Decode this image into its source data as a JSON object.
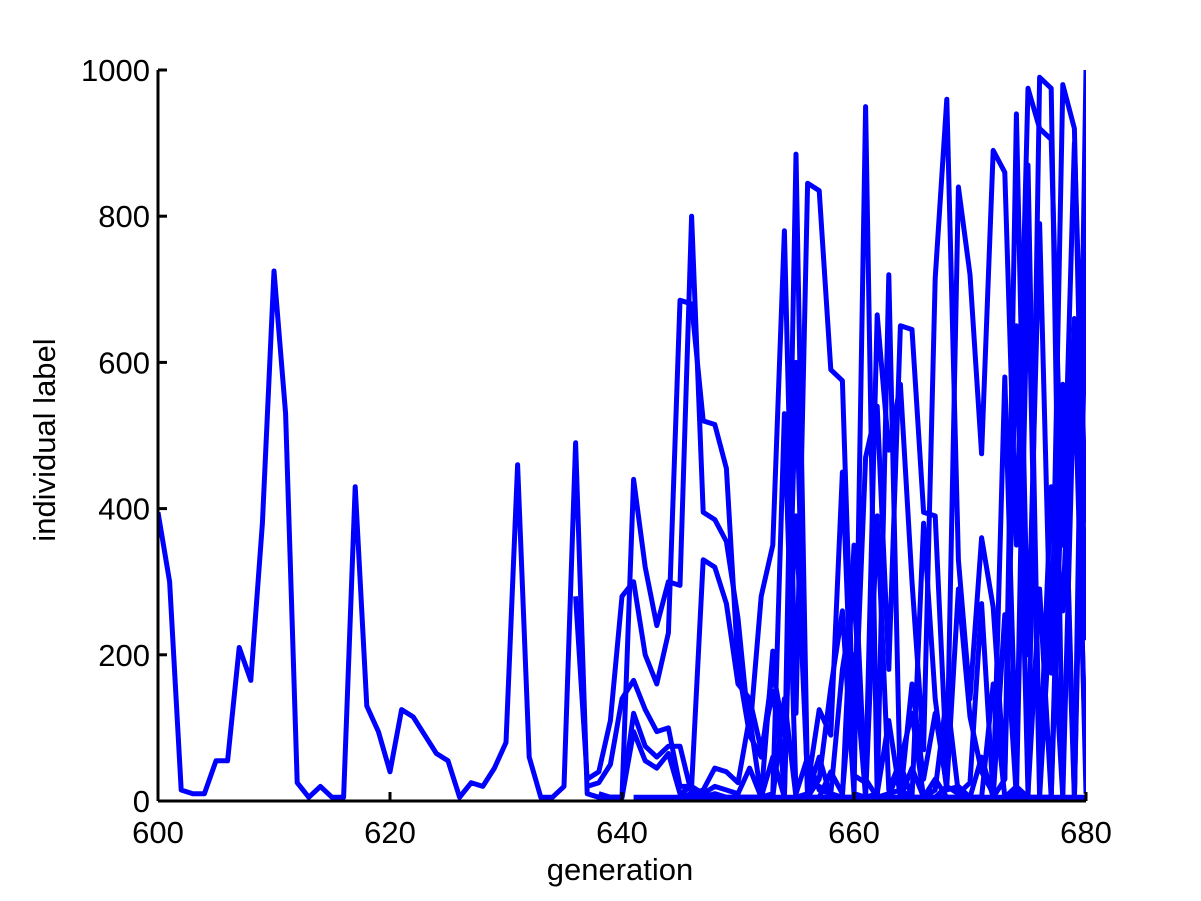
{
  "chart_data": {
    "type": "line",
    "title": "",
    "xlabel": "generation",
    "ylabel": "individual label",
    "xlim": [
      600,
      680
    ],
    "ylim": [
      0,
      1000
    ],
    "xticks": [
      600,
      620,
      640,
      660,
      680
    ],
    "yticks": [
      0,
      200,
      400,
      600,
      800,
      1000
    ],
    "grid": false,
    "legend": "none",
    "line_color": "#0000ff",
    "series": [
      {
        "x": [
          600,
          601,
          602,
          603,
          604,
          605,
          606,
          607,
          608,
          609,
          610,
          611,
          612,
          613,
          614,
          615,
          616,
          617,
          618,
          619,
          620,
          621,
          622,
          623,
          624,
          625,
          626,
          627,
          628,
          629,
          630,
          631,
          632,
          633,
          634,
          635,
          636,
          637,
          638,
          639,
          640,
          641,
          642,
          643,
          644,
          645,
          646,
          647,
          648,
          649,
          650,
          651,
          652,
          653,
          654,
          655,
          656,
          657,
          658,
          659,
          660,
          661,
          662,
          663,
          664,
          665,
          666,
          667,
          668,
          669,
          670,
          671,
          672,
          673,
          674,
          675,
          676,
          677,
          678,
          679,
          680
        ],
        "y": [
          395,
          300,
          15,
          10,
          10,
          55,
          55,
          210,
          165,
          380,
          725,
          530,
          25,
          5,
          20,
          5,
          5,
          430,
          130,
          95,
          40,
          125,
          115,
          90,
          65,
          55,
          5,
          25,
          20,
          45,
          80,
          460,
          60,
          5,
          5,
          20,
          490,
          10,
          5,
          5,
          5,
          440,
          320,
          240,
          300,
          295,
          800,
          395,
          385,
          355,
          250,
          90,
          60,
          180,
          90,
          390,
          25,
          20,
          10,
          5,
          5,
          950,
          5,
          10,
          15,
          5,
          380,
          140,
          15,
          20,
          5,
          5,
          0,
          5,
          10,
          0,
          990,
          975,
          5,
          0,
          1000
        ]
      },
      {
        "x": [
          636,
          637,
          638,
          639,
          640,
          641,
          642,
          643,
          644,
          645,
          646,
          647,
          648,
          649,
          650,
          651,
          652,
          653,
          654,
          655,
          656,
          657,
          658,
          659,
          660,
          661,
          662,
          663,
          664,
          665,
          666,
          667,
          668,
          669,
          670,
          671,
          672,
          673,
          674,
          675,
          676,
          677,
          678,
          679,
          680
        ],
        "y": [
          280,
          30,
          40,
          110,
          280,
          300,
          200,
          160,
          230,
          685,
          680,
          520,
          515,
          455,
          185,
          90,
          280,
          350,
          780,
          120,
          845,
          835,
          590,
          575,
          75,
          470,
          540,
          180,
          650,
          645,
          395,
          390,
          45,
          840,
          720,
          475,
          890,
          860,
          350,
          975,
          920,
          905,
          350,
          900,
          380
        ]
      },
      {
        "x": [
          637,
          638,
          639,
          640,
          641,
          642,
          643,
          644,
          645,
          646,
          647,
          648,
          649,
          650,
          651,
          652,
          653,
          654,
          655,
          656,
          657,
          658,
          659,
          660,
          661,
          662,
          663,
          664,
          665,
          666,
          667,
          668,
          669,
          670,
          671,
          672,
          673,
          674,
          675,
          676,
          677,
          678,
          679,
          680
        ],
        "y": [
          20,
          25,
          50,
          140,
          165,
          125,
          95,
          100,
          20,
          20,
          330,
          320,
          270,
          160,
          140,
          70,
          150,
          35,
          885,
          20,
          125,
          90,
          450,
          35,
          25,
          665,
          480,
          570,
          300,
          70,
          715,
          960,
          330,
          140,
          360,
          265,
          30,
          940,
          200,
          790,
          175,
          980,
          920,
          220
        ]
      },
      {
        "x": [
          638,
          639,
          640,
          641,
          642,
          643,
          644,
          645,
          646,
          647,
          648,
          649,
          650,
          651,
          652,
          653,
          654,
          655,
          656,
          657,
          658,
          659,
          660,
          661,
          662,
          663,
          664,
          665,
          666,
          667,
          668,
          669,
          670,
          671,
          672,
          673,
          674,
          675,
          676,
          677,
          678,
          679,
          680
        ],
        "y": [
          10,
          5,
          5,
          120,
          75,
          60,
          75,
          75,
          10,
          15,
          45,
          40,
          25,
          115,
          5,
          10,
          530,
          10,
          60,
          15,
          10,
          180,
          280,
          30,
          5,
          720,
          5,
          160,
          30,
          120,
          20,
          290,
          115,
          40,
          10,
          580,
          35,
          870,
          40,
          430,
          260,
          660,
          10
        ]
      },
      {
        "x": [
          638,
          639,
          640,
          641,
          642,
          643,
          644,
          645,
          646,
          647,
          648,
          649,
          650,
          651,
          652,
          653,
          654,
          655,
          656,
          657,
          658,
          659,
          660,
          661,
          662,
          663,
          664,
          665,
          666,
          667,
          668,
          669,
          670,
          671,
          672,
          673,
          674,
          675,
          676,
          677,
          678,
          679,
          680
        ],
        "y": [
          5,
          5,
          5,
          95,
          55,
          45,
          65,
          10,
          20,
          10,
          20,
          15,
          10,
          45,
          5,
          205,
          10,
          600,
          5,
          30,
          155,
          260,
          10,
          5,
          390,
          15,
          55,
          120,
          5,
          15,
          145,
          10,
          25,
          270,
          5,
          30,
          650,
          10,
          290,
          5,
          570,
          5,
          810
        ]
      },
      {
        "x": [
          641,
          642,
          643,
          644,
          645,
          646,
          647,
          648,
          649,
          650,
          651,
          652,
          653,
          654,
          655,
          656,
          657,
          658,
          659,
          660,
          661,
          662,
          663,
          664,
          665,
          666,
          667,
          668,
          669,
          670,
          671,
          672,
          673,
          674,
          675,
          676,
          677,
          678,
          679,
          680
        ],
        "y": [
          5,
          5,
          5,
          5,
          5,
          10,
          5,
          10,
          5,
          5,
          5,
          5,
          60,
          5,
          580,
          5,
          5,
          40,
          10,
          200,
          5,
          10,
          110,
          5,
          45,
          5,
          5,
          20,
          10,
          5,
          60,
          5,
          255,
          5,
          750,
          5,
          280,
          5,
          600,
          40
        ]
      },
      {
        "x": [
          645,
          646,
          647,
          648,
          649,
          650,
          651,
          652,
          653,
          654,
          655,
          656,
          657,
          658,
          659,
          660,
          661,
          662,
          663,
          664,
          665,
          666,
          667,
          668,
          669,
          670,
          671,
          672,
          673,
          674,
          675,
          676,
          677,
          678,
          679,
          680
        ],
        "y": [
          5,
          5,
          5,
          5,
          5,
          5,
          5,
          5,
          5,
          140,
          5,
          10,
          60,
          5,
          5,
          350,
          5,
          5,
          5,
          50,
          5,
          5,
          30,
          5,
          5,
          5,
          5,
          160,
          5,
          20,
          5,
          5,
          5,
          480,
          5,
          710
        ]
      },
      {
        "x": [
          650,
          651,
          652,
          653,
          654,
          655,
          656,
          657,
          658,
          659,
          660,
          661,
          662,
          663,
          664,
          665,
          666,
          667,
          668,
          669,
          670,
          671,
          672,
          673,
          674,
          675,
          676,
          677,
          678,
          679,
          680
        ],
        "y": [
          5,
          5,
          5,
          5,
          5,
          5,
          5,
          5,
          5,
          5,
          5,
          5,
          5,
          5,
          5,
          5,
          5,
          5,
          5,
          5,
          5,
          5,
          5,
          5,
          5,
          5,
          5,
          5,
          5,
          5,
          5
        ]
      }
    ]
  }
}
